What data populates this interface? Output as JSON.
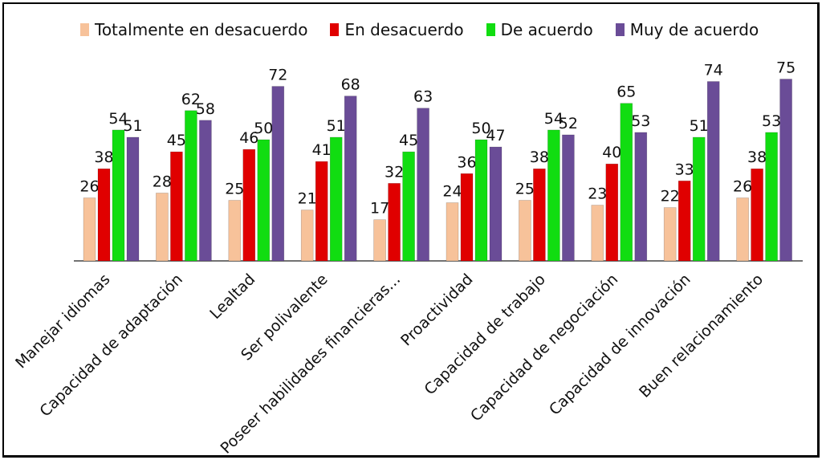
{
  "chart_data": {
    "type": "bar",
    "categories": [
      "Manejar idiomas",
      "Capacidad de adaptación",
      "Lealtad",
      "Ser polivalente",
      "Poseer habilidades financieras...",
      "Proactividad",
      "Capacidad de trabajo",
      "Capacidad de negociación",
      "Capacidad de innovación",
      "Buen relacionamiento"
    ],
    "series": [
      {
        "name": "Totalmente en desacuerdo",
        "color": "#f7c29a",
        "values": [
          26,
          28,
          25,
          21,
          17,
          24,
          25,
          23,
          22,
          26
        ]
      },
      {
        "name": "En desacuerdo",
        "color": "#e00000",
        "values": [
          38,
          45,
          46,
          41,
          32,
          36,
          38,
          40,
          33,
          38
        ]
      },
      {
        "name": "De acuerdo",
        "color": "#11dd11",
        "values": [
          54,
          62,
          50,
          51,
          45,
          50,
          54,
          65,
          51,
          53
        ]
      },
      {
        "name": "Muy de acuerdo",
        "color": "#6a4c97",
        "values": [
          51,
          58,
          72,
          68,
          63,
          47,
          52,
          53,
          74,
          75
        ]
      }
    ],
    "title": "",
    "xlabel": "",
    "ylabel": "",
    "ylim": [
      0,
      80
    ],
    "grid": false,
    "legend": "top"
  }
}
